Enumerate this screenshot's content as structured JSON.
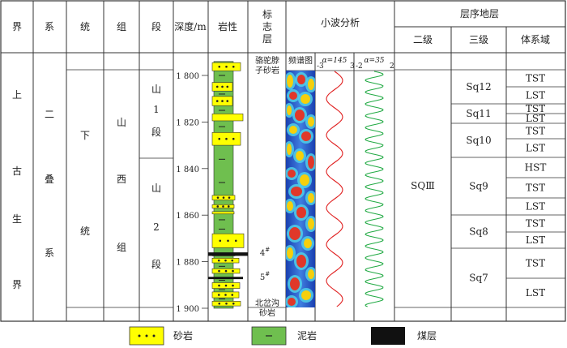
{
  "header": {
    "jie": "界",
    "xi": "系",
    "tong": "统",
    "zu": "组",
    "duan": "段",
    "depth": "深度/m",
    "lithology": "岩性",
    "marker": "标志层",
    "wavelet": "小波分析",
    "spectrum": "频谱图",
    "a145_label": "α=145",
    "a145_min": "-3",
    "a145_max": "3",
    "a35_label": "α=35",
    "a35_min": "-2",
    "a35_max": "2",
    "sequence": "层序地层",
    "level2": "二级",
    "level3": "三级",
    "systems_tract": "体系域"
  },
  "columns": {
    "jie": [
      "上",
      "古",
      "生",
      "界"
    ],
    "xi": [
      "二",
      "叠",
      "系"
    ],
    "tong": [
      "下",
      "统"
    ],
    "zu": [
      "山",
      "西",
      "组"
    ],
    "duan1": [
      "山",
      "1",
      "段"
    ],
    "duan2": [
      "山",
      "2",
      "段"
    ]
  },
  "depth_ticks": [
    "1 800",
    "1 820",
    "1 840",
    "1 860",
    "1 880",
    "1 900"
  ],
  "markers": {
    "top": [
      "骆驼脖",
      "子砂岩"
    ],
    "m4": "4",
    "m5": "5",
    "bottom": [
      "北岔沟",
      "砂岩"
    ]
  },
  "sequence_level2": "SQⅢ",
  "sequence_level3": [
    "Sq12",
    "Sq11",
    "Sq10",
    "Sq9",
    "Sq8",
    "Sq7"
  ],
  "systems_tracts": [
    "TST",
    "LST",
    "TST",
    "LST",
    "TST",
    "LST",
    "HST",
    "TST",
    "LST",
    "TST",
    "LST",
    "TST",
    "LST"
  ],
  "legend": {
    "sandstone": "砂岩",
    "mudstone": "泥岩",
    "coal": "煤层"
  },
  "colors": {
    "sand": "#ffff00",
    "mud": "#6fbf4f",
    "coal": "#111111",
    "curve145": "#e02020",
    "curve35": "#22aa44"
  }
}
